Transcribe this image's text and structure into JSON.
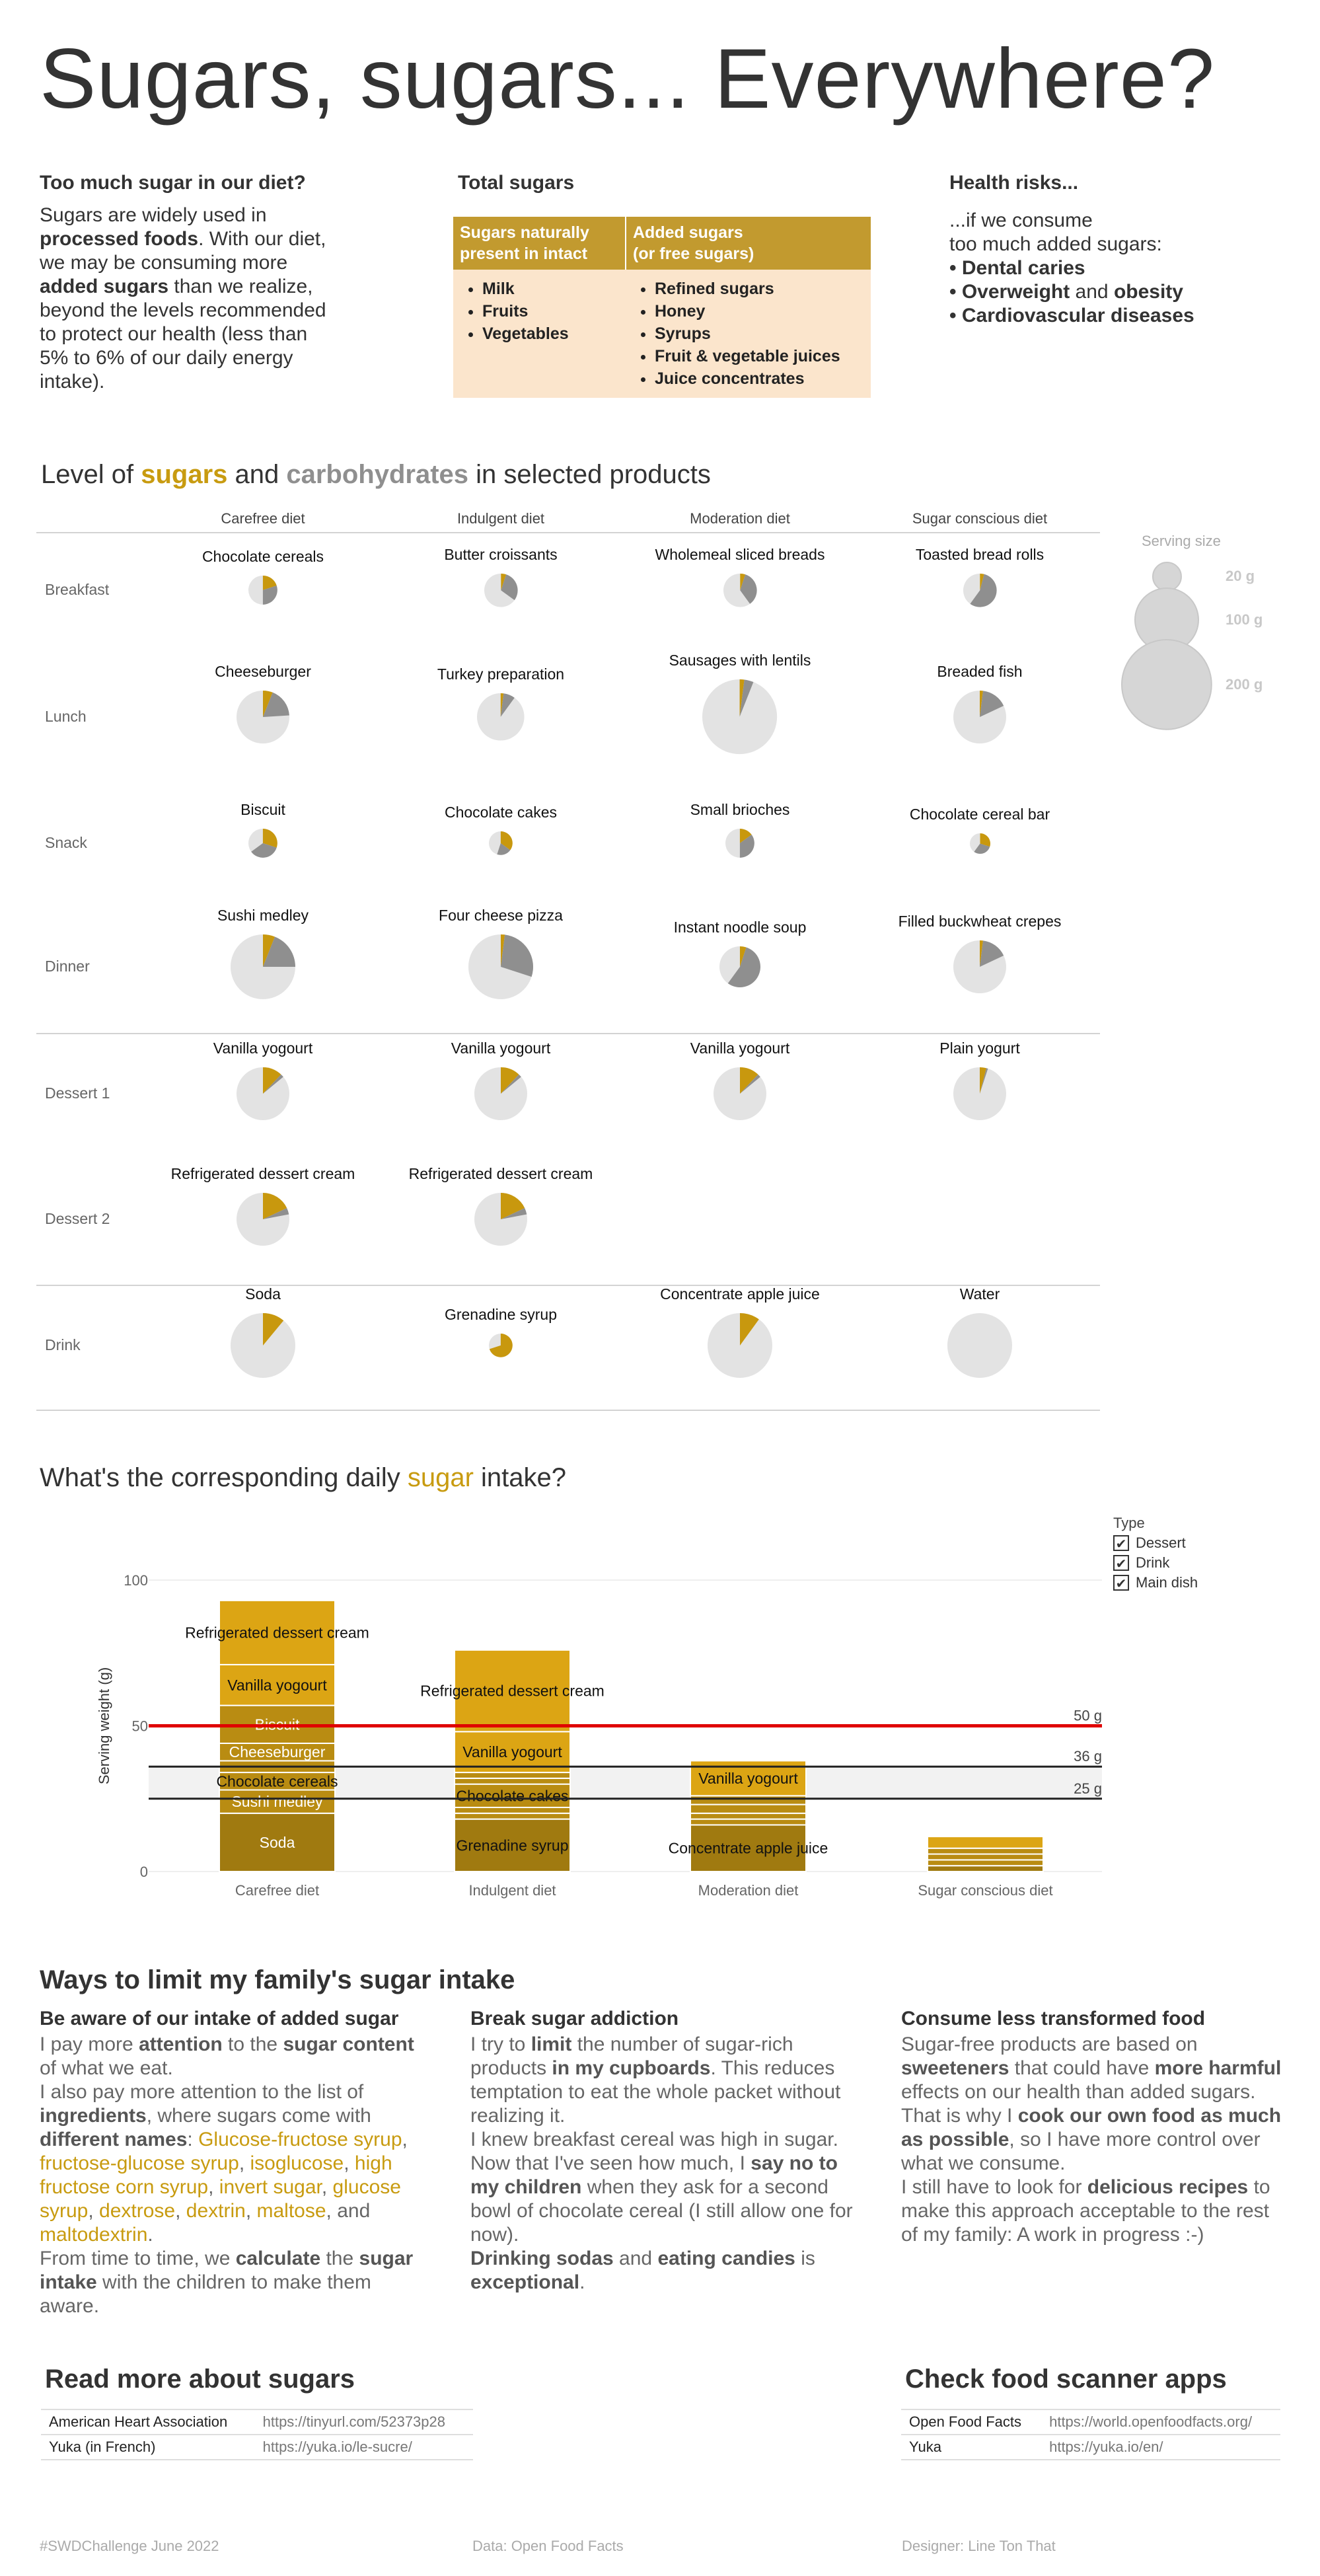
{
  "title": "Sugars, sugars... Everywhere?",
  "intro": {
    "heading": "Too much sugar in our diet?",
    "lines": [
      [
        {
          "t": "Sugars are widely used in"
        }
      ],
      [
        {
          "t": "processed foods",
          "b": true
        },
        {
          "t": ". With our diet,"
        }
      ],
      [
        {
          "t": "we may be consuming more"
        }
      ],
      [
        {
          "t": "added sugars",
          "b": true
        },
        {
          "t": " than we realize,"
        }
      ],
      [
        {
          "t": "beyond the levels recommended"
        }
      ],
      [
        {
          "t": "to protect our health (less than"
        }
      ],
      [
        {
          "t": "5% to 6% of our daily energy"
        }
      ],
      [
        {
          "t": "intake)."
        }
      ]
    ]
  },
  "total_sugars": {
    "heading": "Total sugars",
    "col1_header": [
      "Sugars naturally",
      "present in intact"
    ],
    "col2_header": [
      "Added sugars",
      "(or free sugars)"
    ],
    "col1_items": [
      "Milk",
      "Fruits",
      "Vegetables"
    ],
    "col2_items": [
      "Refined sugars",
      "Honey",
      "Syrups",
      "Fruit & vegetable juices",
      "Juice concentrates"
    ]
  },
  "health": {
    "heading": "Health risks...",
    "line1": "...if we consume",
    "line2": "too much added sugars:",
    "items": [
      [
        {
          "t": "Dental caries",
          "b": true
        }
      ],
      [
        {
          "t": "Overweight",
          "b": true
        },
        {
          "t": " and "
        },
        {
          "t": "obesity",
          "b": true
        }
      ],
      [
        {
          "t": "Cardiovascular diseases",
          "b": true
        }
      ]
    ]
  },
  "level_title": {
    "a": "Level of ",
    "sugars": "sugars",
    "b": " and ",
    "carbs": "carbohydrates",
    "c": " in selected products"
  },
  "diets": [
    "Carefree diet",
    "Indulgent diet",
    "Moderation diet",
    "Sugar conscious diet"
  ],
  "meals": [
    "Breakfast",
    "Lunch",
    "Snack",
    "Dinner",
    "Dessert 1",
    "Dessert 2",
    "Drink"
  ],
  "serving_legend": {
    "title": "Serving size",
    "sizes": [
      {
        "label": "20 g",
        "g": 20
      },
      {
        "label": "100 g",
        "g": 100
      },
      {
        "label": "200 g",
        "g": 200
      }
    ]
  },
  "colors": {
    "sugar": "#c8980e",
    "carbs": "#8f8f8f",
    "rest": "#e3e3e3",
    "bar_dark": "#a07a10",
    "bar_mid": "#b98c12",
    "bar_light": "#dca514",
    "limit_red": "#e00000"
  },
  "products": [
    [
      {
        "name": "Chocolate cereals",
        "serving": 30,
        "sugar": 0.2,
        "carbs": 0.5
      },
      {
        "name": "Butter croissants",
        "serving": 40,
        "sugar": 0.05,
        "carbs": 0.35
      },
      {
        "name": "Wholemeal sliced breads",
        "serving": 40,
        "sugar": 0.05,
        "carbs": 0.4
      },
      {
        "name": "Toasted bread rolls",
        "serving": 40,
        "sugar": 0.04,
        "carbs": 0.6
      }
    ],
    [
      {
        "name": "Cheeseburger",
        "serving": 100,
        "sugar": 0.06,
        "carbs": 0.24
      },
      {
        "name": "Turkey preparation",
        "serving": 80,
        "sugar": 0.02,
        "carbs": 0.1
      },
      {
        "name": "Sausages with lentils",
        "serving": 200,
        "sugar": 0.02,
        "carbs": 0.06
      },
      {
        "name": "Breaded fish",
        "serving": 100,
        "sugar": 0.02,
        "carbs": 0.18
      }
    ],
    [
      {
        "name": "Biscuit",
        "serving": 30,
        "sugar": 0.3,
        "carbs": 0.65
      },
      {
        "name": "Chocolate cakes",
        "serving": 20,
        "sugar": 0.35,
        "carbs": 0.55
      },
      {
        "name": "Small brioches",
        "serving": 30,
        "sugar": 0.15,
        "carbs": 0.5
      },
      {
        "name": "Chocolate cereal bar",
        "serving": 15,
        "sugar": 0.3,
        "carbs": 0.6
      }
    ],
    [
      {
        "name": "Sushi medley",
        "serving": 150,
        "sugar": 0.06,
        "carbs": 0.25
      },
      {
        "name": "Four cheese pizza",
        "serving": 150,
        "sugar": 0.02,
        "carbs": 0.3
      },
      {
        "name": "Instant noodle soup",
        "serving": 60,
        "sugar": 0.05,
        "carbs": 0.6
      },
      {
        "name": "Filled buckwheat crepes",
        "serving": 100,
        "sugar": 0.02,
        "carbs": 0.18
      }
    ],
    [
      {
        "name": "Vanilla yogourt",
        "serving": 100,
        "sugar": 0.12,
        "carbs": 0.14
      },
      {
        "name": "Vanilla yogourt",
        "serving": 100,
        "sugar": 0.12,
        "carbs": 0.14
      },
      {
        "name": "Vanilla yogourt",
        "serving": 100,
        "sugar": 0.12,
        "carbs": 0.14
      },
      {
        "name": "Plain yogurt",
        "serving": 100,
        "sugar": 0.04,
        "carbs": 0.05
      }
    ],
    [
      {
        "name": "Refrigerated dessert cream",
        "serving": 100,
        "sugar": 0.18,
        "carbs": 0.22
      },
      {
        "name": "Refrigerated dessert cream",
        "serving": 100,
        "sugar": 0.18,
        "carbs": 0.22
      },
      null,
      null
    ],
    [
      {
        "name": "Soda",
        "serving": 150,
        "sugar": 0.11,
        "carbs": 0.11
      },
      {
        "name": "Grenadine syrup",
        "serving": 20,
        "sugar": 0.7,
        "carbs": 0.7
      },
      {
        "name": "Concentrate apple juice",
        "serving": 150,
        "sugar": 0.1,
        "carbs": 0.1
      },
      {
        "name": "Water",
        "serving": 150,
        "sugar": 0,
        "carbs": 0
      }
    ]
  ],
  "daily_title": {
    "a": "What's the corresponding daily ",
    "sugar": "sugar",
    "b": " intake?"
  },
  "chart_data": {
    "type": "bar",
    "stacked": true,
    "categories": [
      "Carefree diet",
      "Indulgent diet",
      "Moderation diet",
      "Sugar conscious diet"
    ],
    "ylabel": "Serving weight (g)",
    "yticks": [
      0,
      50,
      100
    ],
    "ylim": [
      0,
      115
    ],
    "stacks": [
      [
        {
          "label": "Soda",
          "value": 20,
          "type": "Drink"
        },
        {
          "label": "Sushi medley",
          "value": 8,
          "type": "Main dish"
        },
        {
          "label": "Chocolate cereals",
          "value": 6,
          "type": "Main dish"
        },
        {
          "label": "",
          "value": 2,
          "type": "Main dish"
        },
        {
          "label": "",
          "value": 2,
          "type": "Main dish"
        },
        {
          "label": "Cheeseburger",
          "value": 6,
          "type": "Main dish"
        },
        {
          "label": "Biscuit",
          "value": 13,
          "type": "Main dish"
        },
        {
          "label": "Vanilla yogourt",
          "value": 14,
          "type": "Dessert"
        },
        {
          "label": "Refrigerated dessert cream",
          "value": 22,
          "type": "Dessert"
        }
      ],
      [
        {
          "label": "Grenadine syrup",
          "value": 18,
          "type": "Drink"
        },
        {
          "label": "",
          "value": 2,
          "type": "Main dish"
        },
        {
          "label": "",
          "value": 2,
          "type": "Main dish"
        },
        {
          "label": "Chocolate cakes",
          "value": 8,
          "type": "Main dish"
        },
        {
          "label": "",
          "value": 2,
          "type": "Main dish"
        },
        {
          "label": "",
          "value": 2,
          "type": "Main dish"
        },
        {
          "label": "Vanilla yogourt",
          "value": 14,
          "type": "Dessert"
        },
        {
          "label": "Refrigerated dessert cream",
          "value": 28,
          "type": "Dessert"
        }
      ],
      [
        {
          "label": "Concentrate apple juice",
          "value": 16,
          "type": "Drink"
        },
        {
          "label": "",
          "value": 2,
          "type": "Main dish"
        },
        {
          "label": "",
          "value": 2,
          "type": "Main dish"
        },
        {
          "label": "",
          "value": 3,
          "type": "Main dish"
        },
        {
          "label": "",
          "value": 3,
          "type": "Main dish"
        },
        {
          "label": "Vanilla yogourt",
          "value": 12,
          "type": "Dessert"
        }
      ],
      [
        {
          "label": "",
          "value": 2,
          "type": "Drink"
        },
        {
          "label": "",
          "value": 2,
          "type": "Main dish"
        },
        {
          "label": "",
          "value": 2,
          "type": "Main dish"
        },
        {
          "label": "",
          "value": 2,
          "type": "Main dish"
        },
        {
          "label": "",
          "value": 4,
          "type": "Dessert"
        }
      ]
    ],
    "reference_lines": [
      {
        "value": 50,
        "label": "50 g",
        "color": "#e00000"
      },
      {
        "value": 36,
        "label": "36 g",
        "color": "#222222"
      },
      {
        "value": 25,
        "label": "25 g",
        "color": "#222222"
      }
    ],
    "legend": {
      "title": "Type",
      "items": [
        "Dessert",
        "Drink",
        "Main dish"
      ],
      "checked": [
        true,
        true,
        true
      ]
    }
  },
  "ways": {
    "heading": "Ways to limit my family's sugar intake",
    "cols": [
      {
        "heading": "Be aware of our intake of added sugar",
        "lines": [
          [
            {
              "t": "I pay more "
            },
            {
              "t": "attention",
              "b": true
            },
            {
              "t": " to the "
            },
            {
              "t": "sugar content",
              "b": true
            }
          ],
          [
            {
              "t": "of what we eat."
            }
          ],
          [
            {
              "t": "I also pay more attention to the list of"
            }
          ],
          [
            {
              "t": "ingredients",
              "b": true
            },
            {
              "t": ", where sugars come with"
            }
          ],
          [
            {
              "t": "different names",
              "b": true
            },
            {
              "t": ": "
            },
            {
              "t": "Glucose-fructose syrup",
              "g": true
            },
            {
              "t": ","
            }
          ],
          [
            {
              "t": "fructose-glucose syrup",
              "g": true
            },
            {
              "t": ", "
            },
            {
              "t": "isoglucose",
              "g": true
            },
            {
              "t": ", "
            },
            {
              "t": "high",
              "g": true
            }
          ],
          [
            {
              "t": "fructose corn syrup",
              "g": true
            },
            {
              "t": ", "
            },
            {
              "t": "invert sugar",
              "g": true
            },
            {
              "t": ", "
            },
            {
              "t": "glucose",
              "g": true
            }
          ],
          [
            {
              "t": "syrup",
              "g": true
            },
            {
              "t": ", "
            },
            {
              "t": "dextrose",
              "g": true
            },
            {
              "t": ", "
            },
            {
              "t": "dextrin",
              "g": true
            },
            {
              "t": ", "
            },
            {
              "t": "maltose",
              "g": true
            },
            {
              "t": ", and"
            }
          ],
          [
            {
              "t": "maltodextrin",
              "g": true
            },
            {
              "t": "."
            }
          ],
          [
            {
              "t": "From time to time, we "
            },
            {
              "t": "calculate",
              "b": true
            },
            {
              "t": " the "
            },
            {
              "t": "sugar",
              "b": true
            }
          ],
          [
            {
              "t": "intake",
              "b": true
            },
            {
              "t": " with the children to make them"
            }
          ],
          [
            {
              "t": "aware."
            }
          ]
        ]
      },
      {
        "heading": "Break sugar addiction",
        "lines": [
          [
            {
              "t": "I try to "
            },
            {
              "t": "limit",
              "b": true
            },
            {
              "t": " the number of sugar-rich"
            }
          ],
          [
            {
              "t": "products "
            },
            {
              "t": "in my cupboards",
              "b": true
            },
            {
              "t": ". This reduces"
            }
          ],
          [
            {
              "t": "temptation to eat the whole packet without"
            }
          ],
          [
            {
              "t": "realizing it."
            }
          ],
          [
            {
              "t": "I knew breakfast cereal was high in sugar."
            }
          ],
          [
            {
              "t": "Now that I've seen how much, I "
            },
            {
              "t": "say no to",
              "b": true
            }
          ],
          [
            {
              "t": "my children",
              "b": true
            },
            {
              "t": " when they ask for a second"
            }
          ],
          [
            {
              "t": "bowl of chocolate cereal (I still allow one for"
            }
          ],
          [
            {
              "t": "now)."
            }
          ],
          [
            {
              "t": "Drinking sodas",
              "b": true
            },
            {
              "t": " and "
            },
            {
              "t": "eating candies",
              "b": true
            },
            {
              "t": " is"
            }
          ],
          [
            {
              "t": "exceptional",
              "b": true
            },
            {
              "t": "."
            }
          ]
        ]
      },
      {
        "heading": "Consume less transformed food",
        "lines": [
          [
            {
              "t": "Sugar-free products are based on"
            }
          ],
          [
            {
              "t": "sweeteners",
              "b": true
            },
            {
              "t": " that could have "
            },
            {
              "t": "more harmful",
              "b": true
            }
          ],
          [
            {
              "t": "effects on our health than added sugars."
            }
          ],
          [
            {
              "t": "That is why I "
            },
            {
              "t": "cook our own food as much",
              "b": true
            }
          ],
          [
            {
              "t": "as possible",
              "b": true
            },
            {
              "t": ", so I have more control over"
            }
          ],
          [
            {
              "t": "what we consume."
            }
          ],
          [
            {
              "t": "I still have to look for "
            },
            {
              "t": "delicious recipes",
              "b": true
            },
            {
              "t": " to"
            }
          ],
          [
            {
              "t": "make this approach acceptable to the rest"
            }
          ],
          [
            {
              "t": "of my family: A work in progress :-)"
            }
          ]
        ]
      }
    ]
  },
  "read_more": {
    "heading": "Read more about sugars",
    "rows": [
      {
        "k": "American Heart Association",
        "v": "https://tinyurl.com/52373p28"
      },
      {
        "k": "Yuka (in French)",
        "v": "https://yuka.io/le-sucre/"
      }
    ]
  },
  "scanner": {
    "heading": "Check food scanner apps",
    "rows": [
      {
        "k": "Open Food Facts",
        "v": "https://world.openfoodfacts.org/"
      },
      {
        "k": "Yuka",
        "v": "https://yuka.io/en/"
      }
    ]
  },
  "footer": {
    "left": "#SWDChallenge June 2022",
    "mid": "Data: Open Food Facts",
    "right": "Designer: Line Ton That"
  }
}
